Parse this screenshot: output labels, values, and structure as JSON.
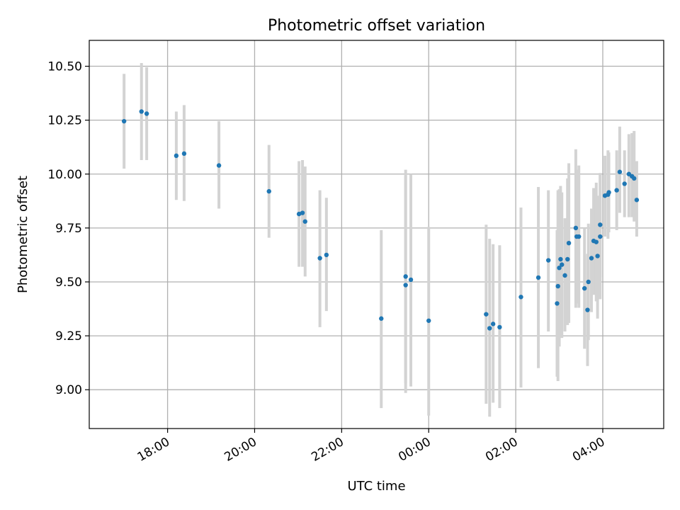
{
  "chart_data": {
    "type": "scatter",
    "title": "Photometric offset variation",
    "xlabel": "UTC time",
    "ylabel": "Photometric offset",
    "x_unit": "hours since 00:00 UTC (negative = previous day)",
    "xlim": [
      -7.8,
      5.4
    ],
    "ylim": [
      8.82,
      10.62
    ],
    "grid": true,
    "x_ticks": [
      {
        "value": -6,
        "label": "18:00"
      },
      {
        "value": -4,
        "label": "20:00"
      },
      {
        "value": -2,
        "label": "22:00"
      },
      {
        "value": 0,
        "label": "00:00"
      },
      {
        "value": 2,
        "label": "02:00"
      },
      {
        "value": 4,
        "label": "04:00"
      }
    ],
    "y_ticks": [
      {
        "value": 9.0,
        "label": "9.00"
      },
      {
        "value": 9.25,
        "label": "9.25"
      },
      {
        "value": 9.5,
        "label": "9.50"
      },
      {
        "value": 9.75,
        "label": "9.75"
      },
      {
        "value": 10.0,
        "label": "10.00"
      },
      {
        "value": 10.25,
        "label": "10.25"
      },
      {
        "value": 10.5,
        "label": "10.50"
      }
    ],
    "colors": {
      "point": "#1f77b4",
      "errorbar": "#d3d3d3",
      "grid": "#b0b0b0"
    },
    "points": [
      {
        "x": -7.0,
        "y": 10.245,
        "lo": 10.025,
        "hi": 10.465
      },
      {
        "x": -6.6,
        "y": 10.29,
        "lo": 10.065,
        "hi": 10.515
      },
      {
        "x": -6.48,
        "y": 10.28,
        "lo": 10.065,
        "hi": 10.495
      },
      {
        "x": -5.8,
        "y": 10.085,
        "lo": 9.88,
        "hi": 10.29
      },
      {
        "x": -5.62,
        "y": 10.095,
        "lo": 9.875,
        "hi": 10.32
      },
      {
        "x": -4.82,
        "y": 10.04,
        "lo": 9.84,
        "hi": 10.245
      },
      {
        "x": -3.67,
        "y": 9.92,
        "lo": 9.705,
        "hi": 10.135
      },
      {
        "x": -2.98,
        "y": 9.815,
        "lo": 9.57,
        "hi": 10.06
      },
      {
        "x": -2.9,
        "y": 9.82,
        "lo": 9.57,
        "hi": 10.065
      },
      {
        "x": -2.84,
        "y": 9.78,
        "lo": 9.525,
        "hi": 10.035
      },
      {
        "x": -2.5,
        "y": 9.61,
        "lo": 9.29,
        "hi": 9.925
      },
      {
        "x": -2.35,
        "y": 9.625,
        "lo": 9.365,
        "hi": 9.89
      },
      {
        "x": -1.09,
        "y": 9.33,
        "lo": 8.915,
        "hi": 9.74
      },
      {
        "x": -0.53,
        "y": 9.525,
        "lo": 9.03,
        "hi": 10.02
      },
      {
        "x": -0.53,
        "y": 9.485,
        "lo": 8.985,
        "hi": 9.99
      },
      {
        "x": -0.41,
        "y": 9.51,
        "lo": 9.015,
        "hi": 10.0
      },
      {
        "x": 0.0,
        "y": 9.32,
        "lo": 8.88,
        "hi": 9.755
      },
      {
        "x": 1.32,
        "y": 9.35,
        "lo": 8.935,
        "hi": 9.765
      },
      {
        "x": 1.4,
        "y": 9.285,
        "lo": 8.875,
        "hi": 9.7
      },
      {
        "x": 1.48,
        "y": 9.305,
        "lo": 8.94,
        "hi": 9.675
      },
      {
        "x": 1.63,
        "y": 9.29,
        "lo": 8.915,
        "hi": 9.67
      },
      {
        "x": 2.12,
        "y": 9.43,
        "lo": 9.01,
        "hi": 9.845
      },
      {
        "x": 2.52,
        "y": 9.52,
        "lo": 9.1,
        "hi": 9.94
      },
      {
        "x": 2.75,
        "y": 9.6,
        "lo": 9.27,
        "hi": 9.925
      },
      {
        "x": 2.95,
        "y": 9.4,
        "lo": 9.06,
        "hi": 9.74
      },
      {
        "x": 2.97,
        "y": 9.48,
        "lo": 9.04,
        "hi": 9.925
      },
      {
        "x": 3.0,
        "y": 9.565,
        "lo": 9.2,
        "hi": 9.93
      },
      {
        "x": 3.03,
        "y": 9.605,
        "lo": 9.26,
        "hi": 9.945
      },
      {
        "x": 3.06,
        "y": 9.58,
        "lo": 9.24,
        "hi": 9.915
      },
      {
        "x": 3.13,
        "y": 9.53,
        "lo": 9.27,
        "hi": 9.795
      },
      {
        "x": 3.19,
        "y": 9.605,
        "lo": 9.3,
        "hi": 9.98
      },
      {
        "x": 3.22,
        "y": 9.68,
        "lo": 9.31,
        "hi": 10.05
      },
      {
        "x": 3.38,
        "y": 9.75,
        "lo": 9.38,
        "hi": 10.115
      },
      {
        "x": 3.4,
        "y": 9.71,
        "lo": 9.4,
        "hi": 10.02
      },
      {
        "x": 3.45,
        "y": 9.71,
        "lo": 9.38,
        "hi": 10.04
      },
      {
        "x": 3.58,
        "y": 9.47,
        "lo": 9.19,
        "hi": 9.75
      },
      {
        "x": 3.65,
        "y": 9.37,
        "lo": 9.11,
        "hi": 9.63
      },
      {
        "x": 3.67,
        "y": 9.5,
        "lo": 9.23,
        "hi": 9.77
      },
      {
        "x": 3.74,
        "y": 9.61,
        "lo": 9.36,
        "hi": 9.84
      },
      {
        "x": 3.79,
        "y": 9.69,
        "lo": 9.44,
        "hi": 9.935
      },
      {
        "x": 3.85,
        "y": 9.685,
        "lo": 9.41,
        "hi": 9.96
      },
      {
        "x": 3.88,
        "y": 9.62,
        "lo": 9.33,
        "hi": 9.9
      },
      {
        "x": 3.94,
        "y": 9.765,
        "lo": 9.52,
        "hi": 10.0
      },
      {
        "x": 3.94,
        "y": 9.71,
        "lo": 9.42,
        "hi": 10.005
      },
      {
        "x": 4.05,
        "y": 9.9,
        "lo": 9.71,
        "hi": 10.085
      },
      {
        "x": 4.12,
        "y": 9.905,
        "lo": 9.7,
        "hi": 10.11
      },
      {
        "x": 4.14,
        "y": 9.915,
        "lo": 9.73,
        "hi": 10.1
      },
      {
        "x": 4.32,
        "y": 9.925,
        "lo": 9.74,
        "hi": 10.11
      },
      {
        "x": 4.39,
        "y": 10.01,
        "lo": 9.82,
        "hi": 10.22
      },
      {
        "x": 4.5,
        "y": 9.955,
        "lo": 9.8,
        "hi": 10.11
      },
      {
        "x": 4.6,
        "y": 10.0,
        "lo": 9.8,
        "hi": 10.185
      },
      {
        "x": 4.67,
        "y": 9.99,
        "lo": 9.8,
        "hi": 10.19
      },
      {
        "x": 4.72,
        "y": 9.98,
        "lo": 9.78,
        "hi": 10.2
      },
      {
        "x": 4.78,
        "y": 9.88,
        "lo": 9.71,
        "hi": 10.06
      }
    ]
  }
}
